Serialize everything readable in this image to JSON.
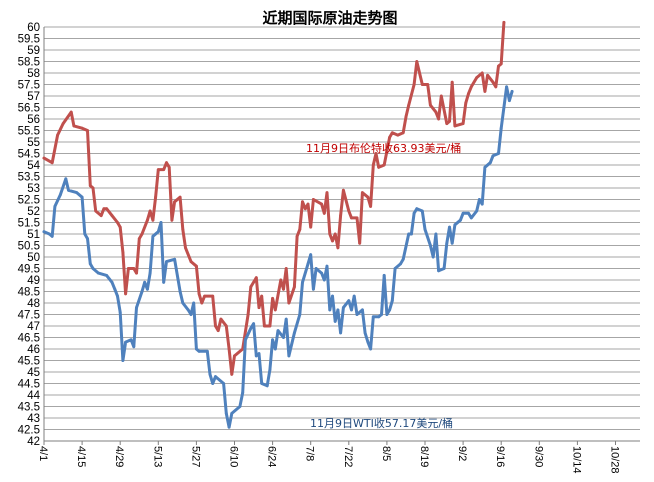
{
  "chart_data": {
    "type": "line",
    "title": "近期国际原油走势图",
    "ylim": [
      42,
      60
    ],
    "y_step": 0.5,
    "ytick_labels": [
      "42",
      "42.5",
      "43",
      "43.5",
      "44",
      "44.5",
      "45",
      "45.5",
      "46",
      "46.5",
      "47",
      "47.5",
      "48",
      "48.5",
      "49",
      "49.5",
      "50",
      "50.5",
      "51",
      "51.5",
      "52",
      "52.5",
      "53",
      "53.5",
      "54",
      "54.5",
      "55",
      "55.5",
      "56",
      "56.5",
      "57",
      "57.5",
      "58",
      "58.5",
      "59",
      "59.5",
      "60"
    ],
    "xtick_labels": [
      "4/1",
      "4/15",
      "4/29",
      "5/13",
      "5/27",
      "6/10",
      "6/24",
      "7/8",
      "7/22",
      "8/5",
      "8/19",
      "9/2",
      "9/16",
      "9/30",
      "10/14",
      "10/28"
    ],
    "xlim_days": [
      1,
      220
    ],
    "xtick_days": [
      1,
      15,
      29,
      43,
      57,
      71,
      85,
      99,
      113,
      127,
      141,
      155,
      169,
      183,
      197,
      211
    ],
    "grid": true,
    "colors": {
      "brent": "#c0504d",
      "wti": "#4f81bd"
    },
    "annotations": [
      {
        "text": "11月9日布伦特收63.93美元/桶",
        "color": "#c00000"
      },
      {
        "text": "11月9日WTI收57.17美元/桶",
        "color": "#1f497d"
      }
    ],
    "series": [
      {
        "key": "brent",
        "points": [
          [
            1,
            54.3
          ],
          [
            4,
            54.1
          ],
          [
            6,
            55.3
          ],
          [
            8,
            55.8
          ],
          [
            11,
            56.3
          ],
          [
            12,
            55.7
          ],
          [
            15,
            55.6
          ],
          [
            17,
            55.5
          ],
          [
            18,
            53.1
          ],
          [
            19,
            53.0
          ],
          [
            20,
            52.0
          ],
          [
            22,
            51.8
          ],
          [
            23,
            52.1
          ],
          [
            24,
            52.1
          ],
          [
            26,
            51.8
          ],
          [
            28,
            51.5
          ],
          [
            29,
            51.3
          ],
          [
            30,
            50.2
          ],
          [
            31,
            48.4
          ],
          [
            32,
            49.5
          ],
          [
            34,
            49.5
          ],
          [
            35,
            49.3
          ],
          [
            36,
            50.8
          ],
          [
            37,
            51.0
          ],
          [
            39,
            51.6
          ],
          [
            40,
            52.0
          ],
          [
            41,
            51.6
          ],
          [
            42,
            52.6
          ],
          [
            43,
            53.8
          ],
          [
            45,
            53.8
          ],
          [
            46,
            54.1
          ],
          [
            47,
            53.9
          ],
          [
            48,
            51.6
          ],
          [
            49,
            52.4
          ],
          [
            51,
            52.6
          ],
          [
            52,
            51.2
          ],
          [
            53,
            50.4
          ],
          [
            55,
            49.8
          ],
          [
            57,
            49.6
          ],
          [
            58,
            48.4
          ],
          [
            59,
            48.0
          ],
          [
            60,
            48.3
          ],
          [
            63,
            48.3
          ],
          [
            64,
            47.0
          ],
          [
            65,
            46.8
          ],
          [
            66,
            47.3
          ],
          [
            68,
            47.0
          ],
          [
            69,
            46.0
          ],
          [
            70,
            44.9
          ],
          [
            71,
            45.7
          ],
          [
            74,
            46.0
          ],
          [
            76,
            47.5
          ],
          [
            77,
            48.7
          ],
          [
            79,
            49.1
          ],
          [
            80,
            47.8
          ],
          [
            81,
            48.3
          ],
          [
            82,
            47.0
          ],
          [
            84,
            47.0
          ],
          [
            85,
            48.2
          ],
          [
            86,
            47.7
          ],
          [
            88,
            49.0
          ],
          [
            89,
            48.6
          ],
          [
            90,
            49.5
          ],
          [
            91,
            48.0
          ],
          [
            93,
            48.7
          ],
          [
            94,
            50.9
          ],
          [
            95,
            51.2
          ],
          [
            96,
            52.4
          ],
          [
            97,
            52.1
          ],
          [
            98,
            52.3
          ],
          [
            99,
            51.3
          ],
          [
            100,
            52.5
          ],
          [
            103,
            52.3
          ],
          [
            104,
            51.9
          ],
          [
            105,
            52.8
          ],
          [
            106,
            51.0
          ],
          [
            107,
            50.7
          ],
          [
            108,
            51.0
          ],
          [
            109,
            50.4
          ],
          [
            110,
            51.8
          ],
          [
            111,
            52.9
          ],
          [
            113,
            52.0
          ],
          [
            114,
            51.7
          ],
          [
            116,
            51.7
          ],
          [
            117,
            50.6
          ],
          [
            118,
            52.8
          ],
          [
            120,
            52.6
          ],
          [
            121,
            52.2
          ],
          [
            122,
            54.0
          ],
          [
            123,
            54.5
          ],
          [
            124,
            53.9
          ],
          [
            126,
            54.0
          ],
          [
            128,
            55.2
          ],
          [
            129,
            55.4
          ],
          [
            131,
            55.3
          ],
          [
            133,
            55.4
          ],
          [
            134,
            56.1
          ],
          [
            135,
            56.6
          ],
          [
            137,
            57.5
          ],
          [
            138,
            58.5
          ],
          [
            140,
            57.5
          ],
          [
            142,
            57.5
          ],
          [
            143,
            56.6
          ],
          [
            145,
            56.3
          ],
          [
            146,
            56.0
          ],
          [
            147,
            57.0
          ],
          [
            149,
            55.8
          ],
          [
            150,
            55.9
          ],
          [
            151,
            57.6
          ],
          [
            152,
            55.7
          ],
          [
            155,
            55.8
          ],
          [
            156,
            56.7
          ],
          [
            157,
            57.1
          ],
          [
            158,
            57.4
          ],
          [
            160,
            57.8
          ],
          [
            162,
            58.0
          ],
          [
            163,
            57.2
          ],
          [
            164,
            57.9
          ],
          [
            166,
            57.6
          ],
          [
            167,
            57.4
          ],
          [
            168,
            58.3
          ],
          [
            169,
            58.4
          ],
          [
            170,
            60.2
          ]
        ]
      },
      {
        "key": "wti",
        "points": [
          [
            1,
            51.1
          ],
          [
            3,
            51.0
          ],
          [
            4,
            50.9
          ],
          [
            5,
            52.2
          ],
          [
            7,
            52.7
          ],
          [
            9,
            53.4
          ],
          [
            10,
            52.9
          ],
          [
            13,
            52.8
          ],
          [
            15,
            52.6
          ],
          [
            16,
            51.0
          ],
          [
            17,
            50.8
          ],
          [
            18,
            49.7
          ],
          [
            19,
            49.5
          ],
          [
            21,
            49.3
          ],
          [
            24,
            49.2
          ],
          [
            26,
            48.9
          ],
          [
            27,
            48.6
          ],
          [
            28,
            48.3
          ],
          [
            29,
            47.6
          ],
          [
            30,
            45.5
          ],
          [
            31,
            46.3
          ],
          [
            33,
            46.4
          ],
          [
            34,
            46.1
          ],
          [
            35,
            47.8
          ],
          [
            37,
            48.5
          ],
          [
            38,
            48.9
          ],
          [
            39,
            48.6
          ],
          [
            40,
            49.3
          ],
          [
            41,
            50.9
          ],
          [
            43,
            51.1
          ],
          [
            44,
            51.5
          ],
          [
            45,
            48.9
          ],
          [
            46,
            49.8
          ],
          [
            49,
            49.9
          ],
          [
            51,
            48.5
          ],
          [
            52,
            48.0
          ],
          [
            54,
            47.7
          ],
          [
            55,
            47.5
          ],
          [
            56,
            48.0
          ],
          [
            57,
            46.0
          ],
          [
            58,
            45.9
          ],
          [
            61,
            45.9
          ],
          [
            62,
            44.9
          ],
          [
            63,
            44.5
          ],
          [
            64,
            44.8
          ],
          [
            67,
            44.5
          ],
          [
            68,
            43.2
          ],
          [
            69,
            42.6
          ],
          [
            70,
            43.2
          ],
          [
            73,
            43.5
          ],
          [
            74,
            44.1
          ],
          [
            75,
            46.4
          ],
          [
            77,
            46.9
          ],
          [
            78,
            47.1
          ],
          [
            79,
            45.7
          ],
          [
            80,
            45.8
          ],
          [
            81,
            44.5
          ],
          [
            83,
            44.4
          ],
          [
            84,
            45.1
          ],
          [
            85,
            46.4
          ],
          [
            86,
            46.0
          ],
          [
            87,
            46.8
          ],
          [
            89,
            46.5
          ],
          [
            90,
            47.3
          ],
          [
            91,
            45.7
          ],
          [
            93,
            46.7
          ],
          [
            95,
            47.5
          ],
          [
            96,
            48.9
          ],
          [
            98,
            49.7
          ],
          [
            99,
            50.1
          ],
          [
            100,
            48.6
          ],
          [
            101,
            49.5
          ],
          [
            103,
            49.3
          ],
          [
            104,
            49.0
          ],
          [
            105,
            49.6
          ],
          [
            106,
            47.7
          ],
          [
            107,
            48.3
          ],
          [
            108,
            47.2
          ],
          [
            109,
            47.7
          ],
          [
            110,
            46.7
          ],
          [
            111,
            47.8
          ],
          [
            113,
            48.1
          ],
          [
            114,
            47.7
          ],
          [
            115,
            48.3
          ],
          [
            116,
            47.5
          ],
          [
            118,
            47.7
          ],
          [
            119,
            46.7
          ],
          [
            120,
            46.3
          ],
          [
            121,
            46.0
          ],
          [
            122,
            47.4
          ],
          [
            124,
            47.4
          ],
          [
            125,
            47.5
          ],
          [
            126,
            49.2
          ],
          [
            127,
            47.5
          ],
          [
            128,
            47.7
          ],
          [
            129,
            48.1
          ],
          [
            130,
            49.5
          ],
          [
            132,
            49.7
          ],
          [
            133,
            49.9
          ],
          [
            135,
            51.0
          ],
          [
            136,
            51.0
          ],
          [
            137,
            51.9
          ],
          [
            138,
            52.1
          ],
          [
            140,
            52.0
          ],
          [
            141,
            51.2
          ],
          [
            143,
            50.5
          ],
          [
            144,
            50.0
          ],
          [
            145,
            51.0
          ],
          [
            146,
            49.4
          ],
          [
            148,
            49.5
          ],
          [
            149,
            50.6
          ],
          [
            150,
            51.3
          ],
          [
            151,
            50.6
          ],
          [
            152,
            51.4
          ],
          [
            154,
            51.6
          ],
          [
            155,
            51.9
          ],
          [
            157,
            51.9
          ],
          [
            158,
            51.7
          ],
          [
            160,
            52.0
          ],
          [
            161,
            52.5
          ],
          [
            162,
            52.3
          ],
          [
            163,
            53.9
          ],
          [
            165,
            54.1
          ],
          [
            166,
            54.4
          ],
          [
            168,
            54.5
          ],
          [
            169,
            55.6
          ],
          [
            171,
            57.4
          ],
          [
            172,
            56.8
          ],
          [
            173,
            57.2
          ]
        ]
      }
    ]
  }
}
